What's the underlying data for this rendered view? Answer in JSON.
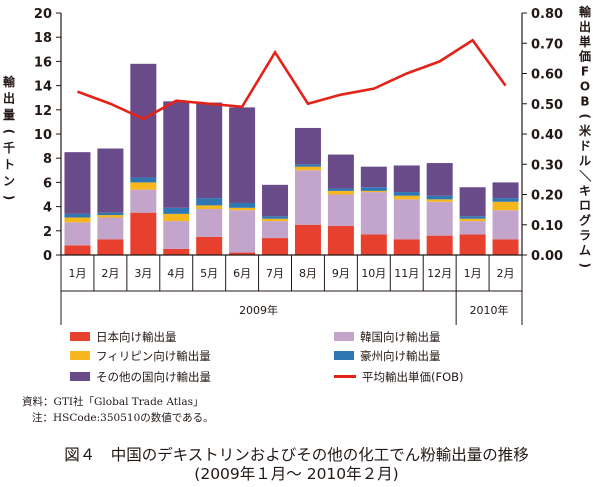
{
  "chart_data": {
    "type": "bar",
    "stacked": true,
    "categories": [
      "1月",
      "2月",
      "3月",
      "4月",
      "5月",
      "6月",
      "7月",
      "8月",
      "9月",
      "10月",
      "11月",
      "12月",
      "1月",
      "2月"
    ],
    "year_groups": [
      {
        "label": "2009年",
        "from": 0,
        "to": 11
      },
      {
        "label": "2010年",
        "from": 12,
        "to": 13
      }
    ],
    "y_left": {
      "label": "輸出量(千トン)",
      "min": 0,
      "max": 20,
      "ticks": [
        "0",
        "2",
        "4",
        "6",
        "8",
        "10",
        "12",
        "14",
        "16",
        "18",
        "20"
      ]
    },
    "y_right": {
      "label": "輸出単価FOB(米ドル／キログラム)",
      "min": 0,
      "max": 0.8,
      "ticks": [
        "0.00",
        "0.10",
        "0.20",
        "0.30",
        "0.40",
        "0.50",
        "0.60",
        "0.70",
        "0.80"
      ]
    },
    "series": [
      {
        "name": "日本向け輸出量",
        "color": "#e8402e",
        "values": [
          0.8,
          1.3,
          3.5,
          0.5,
          1.5,
          0.2,
          1.4,
          2.5,
          2.4,
          1.7,
          1.3,
          1.6,
          1.7,
          1.3
        ]
      },
      {
        "name": "韓国向け輸出量",
        "color": "#c3a5cb",
        "values": [
          1.9,
          1.8,
          1.9,
          2.3,
          2.3,
          3.5,
          1.4,
          4.5,
          2.6,
          3.5,
          3.3,
          2.8,
          1.1,
          2.4
        ]
      },
      {
        "name": "フィリピン向け輸出量",
        "color": "#f5b71d",
        "values": [
          0.4,
          0.2,
          0.6,
          0.6,
          0.3,
          0.2,
          0.2,
          0.3,
          0.3,
          0.1,
          0.3,
          0.2,
          0.2,
          0.7
        ]
      },
      {
        "name": "豪州向け輸出量",
        "color": "#2f76b4",
        "values": [
          0.3,
          0.2,
          0.4,
          0.5,
          0.6,
          0.4,
          0.2,
          0.2,
          0.2,
          0.3,
          0.3,
          0.3,
          0.2,
          0.3
        ]
      },
      {
        "name": "その他の国向け輸出量",
        "color": "#6a4b8a",
        "values": [
          5.1,
          5.3,
          9.4,
          8.8,
          7.9,
          7.9,
          2.6,
          3.0,
          2.8,
          1.7,
          2.2,
          2.7,
          2.4,
          1.3
        ]
      }
    ],
    "line": {
      "name": "平均輸出単価(FOB)",
      "color": "#e32319",
      "axis": "right",
      "values": [
        0.54,
        0.5,
        0.45,
        0.51,
        0.5,
        0.49,
        0.67,
        0.5,
        0.53,
        0.55,
        0.6,
        0.64,
        0.71,
        0.56
      ]
    }
  },
  "legend": [
    {
      "name": "日本向け輸出量",
      "color": "#e8402e",
      "kind": "bar"
    },
    {
      "name": "韓国向け輸出量",
      "color": "#c3a5cb",
      "kind": "bar"
    },
    {
      "name": "フィリピン向け輸出量",
      "color": "#f5b71d",
      "kind": "bar"
    },
    {
      "name": "豪州向け輸出量",
      "color": "#2f76b4",
      "kind": "bar"
    },
    {
      "name": "その他の国向け輸出量",
      "color": "#6a4b8a",
      "kind": "bar"
    },
    {
      "name": "平均輸出単価(FOB)",
      "color": "#e32319",
      "kind": "line"
    }
  ],
  "notes": {
    "source": "資料：GTI社「Global Trade Atlas」",
    "note": "注：HSCode:350510の数値である。"
  },
  "caption": {
    "line1": "図４　中国のデキストリンおよびその他の化工でん粉輸出量の推移",
    "line2": "(2009年１月～ 2010年２月)"
  }
}
